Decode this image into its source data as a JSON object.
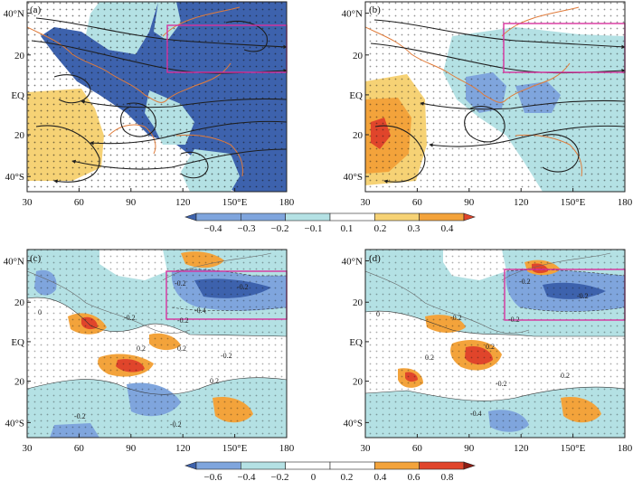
{
  "colors": {
    "dark_blue": "#3d62ad",
    "mid_blue": "#7fa5dd",
    "light_blue": "#b4e1e4",
    "white": "#ffffff",
    "yellow": "#f6d275",
    "orange": "#f3a33b",
    "red": "#e0452b",
    "dark_red": "#8e1c12",
    "coast": "#e07b3a",
    "box": "#d8329e",
    "stream": "#1e1e1e"
  },
  "panels": [
    {
      "id": "a",
      "label": "(a)",
      "kind": "streamline"
    },
    {
      "id": "b",
      "label": "(b)",
      "kind": "streamline"
    },
    {
      "id": "c",
      "label": "(c)",
      "kind": "contour"
    },
    {
      "id": "d",
      "label": "(d)",
      "kind": "contour"
    }
  ],
  "lat_labels": [
    "40°N",
    "20",
    "EQ",
    "20",
    "40°S"
  ],
  "lon_labels": [
    "30",
    "60",
    "90",
    "120",
    "150°E",
    "180"
  ],
  "colorbar_top": {
    "labels": [
      "−0.4",
      "−0.3",
      "−0.2",
      "−0.1",
      "0.1",
      "0.2",
      "0.3",
      "0.4"
    ],
    "colors": [
      "#3d62ad",
      "#7fa5dd",
      "#7fa5dd",
      "#b4e1e4",
      "#ffffff",
      "#f6d275",
      "#f3a33b",
      "#e0452b"
    ]
  },
  "colorbar_bottom": {
    "labels": [
      "−0.6",
      "−0.4",
      "−0.2",
      "0",
      "0.2",
      "0.4",
      "0.6",
      "0.8"
    ],
    "colors": [
      "#3d62ad",
      "#7fa5dd",
      "#b4e1e4",
      "#ffffff",
      "#ffffff",
      "#f3a33b",
      "#e0452b",
      "#8e1c12"
    ]
  },
  "contour_labels_c": [
    "-0.2",
    "-0.2",
    "-0.2",
    "-0.4",
    "-0.2",
    "0.2",
    "0.2",
    "0.2",
    "-0.2",
    "-0.2",
    "-0.2",
    "0"
  ],
  "contour_labels_d": [
    "-0.2",
    "-0.2",
    "-0.2",
    "-0.2",
    "-0.2",
    "0.2",
    "0.2",
    "-0.4",
    "0.2",
    "0"
  ]
}
